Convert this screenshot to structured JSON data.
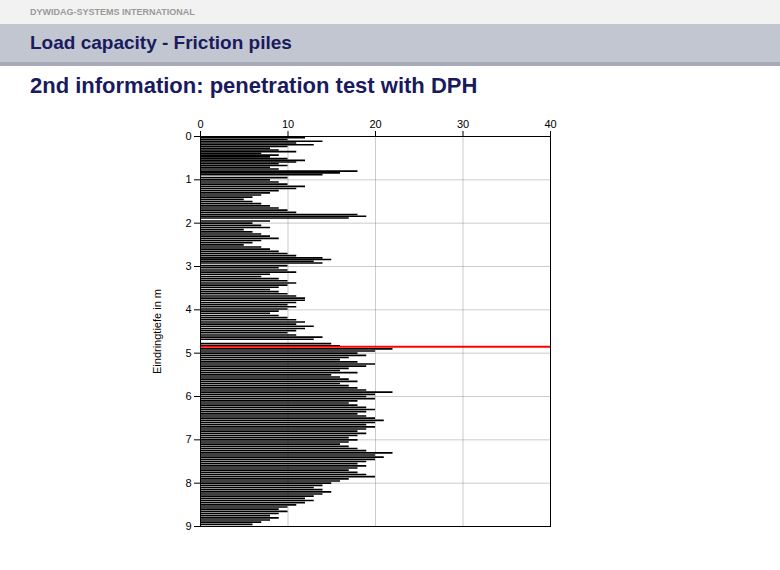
{
  "chart_data": {
    "type": "bar",
    "orientation": "horizontal",
    "title": "Load capacity - Friction piles",
    "subtitle": "2nd information: penetration test with DPH",
    "annotations": [
      "DYWIDAG-SYSTEMS INTERNATIONAL"
    ],
    "y_label": "Eindringtiefe in m",
    "color": "black",
    "grid": true,
    "xlim": [
      0,
      40
    ],
    "xticks": [
      0,
      10,
      20,
      30,
      40
    ],
    "ylim": [
      9,
      0
    ],
    "yticks": [
      0,
      1,
      2,
      3,
      4,
      5,
      6,
      7,
      8,
      9
    ],
    "hline": {
      "y": 4.85,
      "color": "red"
    },
    "x": [
      0.03,
      0.07,
      0.11,
      0.15,
      0.19,
      0.23,
      0.27,
      0.31,
      0.35,
      0.39,
      0.43,
      0.47,
      0.51,
      0.55,
      0.59,
      0.63,
      0.67,
      0.71,
      0.75,
      0.8,
      0.84,
      0.88,
      0.95,
      1.0,
      1.05,
      1.1,
      1.15,
      1.2,
      1.25,
      1.3,
      1.35,
      1.4,
      1.45,
      1.5,
      1.55,
      1.6,
      1.65,
      1.7,
      1.75,
      1.8,
      1.84,
      1.88,
      1.95,
      2.0,
      2.05,
      2.1,
      2.15,
      2.2,
      2.25,
      2.3,
      2.35,
      2.4,
      2.45,
      2.5,
      2.55,
      2.6,
      2.65,
      2.7,
      2.75,
      2.8,
      2.84,
      2.88,
      2.92,
      2.98,
      3.03,
      3.08,
      3.13,
      3.18,
      3.23,
      3.28,
      3.33,
      3.38,
      3.43,
      3.48,
      3.53,
      3.58,
      3.63,
      3.68,
      3.73,
      3.78,
      3.83,
      3.88,
      3.93,
      3.98,
      4.03,
      4.08,
      4.13,
      4.18,
      4.23,
      4.28,
      4.33,
      4.38,
      4.43,
      4.48,
      4.53,
      4.58,
      4.63,
      4.68,
      4.78,
      4.83,
      4.9,
      4.95,
      5.0,
      5.05,
      5.1,
      5.15,
      5.2,
      5.25,
      5.3,
      5.35,
      5.4,
      5.45,
      5.5,
      5.55,
      5.6,
      5.65,
      5.7,
      5.75,
      5.8,
      5.85,
      5.9,
      5.95,
      6.0,
      6.05,
      6.1,
      6.15,
      6.2,
      6.25,
      6.3,
      6.35,
      6.4,
      6.45,
      6.5,
      6.55,
      6.6,
      6.65,
      6.7,
      6.75,
      6.8,
      6.85,
      6.9,
      6.95,
      7.0,
      7.05,
      7.1,
      7.15,
      7.2,
      7.25,
      7.3,
      7.35,
      7.4,
      7.45,
      7.5,
      7.55,
      7.6,
      7.65,
      7.7,
      7.75,
      7.8,
      7.85,
      7.9,
      7.95,
      8.0,
      8.05,
      8.1,
      8.15,
      8.2,
      8.25,
      8.3,
      8.35,
      8.4,
      8.45,
      8.5,
      8.55,
      8.6,
      8.65,
      8.7,
      8.75,
      8.8,
      8.85,
      8.9,
      8.95
    ],
    "values": [
      12,
      10,
      14,
      11,
      13,
      10,
      8,
      9,
      11,
      7,
      9,
      8,
      10,
      12,
      11,
      9,
      10,
      8,
      9,
      18,
      16,
      14,
      10,
      8,
      9,
      10,
      12,
      11,
      9,
      8,
      7,
      6,
      5,
      6,
      7,
      8,
      9,
      10,
      11,
      18,
      19,
      17,
      8,
      6,
      7,
      8,
      5,
      6,
      7,
      8,
      9,
      7,
      6,
      5,
      7,
      8,
      9,
      10,
      11,
      14,
      15,
      13,
      14,
      10,
      9,
      10,
      11,
      8,
      7,
      9,
      10,
      11,
      10,
      9,
      8,
      9,
      10,
      11,
      12,
      12,
      11,
      10,
      11,
      10,
      9,
      8,
      9,
      10,
      11,
      12,
      11,
      13,
      12,
      11,
      10,
      11,
      14,
      13,
      15,
      16,
      22,
      20,
      18,
      19,
      17,
      16,
      18,
      20,
      19,
      17,
      16,
      18,
      15,
      16,
      17,
      18,
      16,
      17,
      18,
      19,
      22,
      20,
      19,
      20,
      18,
      17,
      18,
      19,
      20,
      19,
      18,
      19,
      20,
      21,
      20,
      19,
      20,
      19,
      18,
      19,
      18,
      17,
      18,
      17,
      16,
      17,
      18,
      19,
      22,
      20,
      21,
      20,
      19,
      18,
      19,
      18,
      17,
      18,
      19,
      20,
      17,
      16,
      15,
      14,
      13,
      14,
      15,
      14,
      13,
      12,
      13,
      12,
      11,
      10,
      9,
      10,
      9,
      8,
      9,
      8,
      7,
      6
    ]
  }
}
